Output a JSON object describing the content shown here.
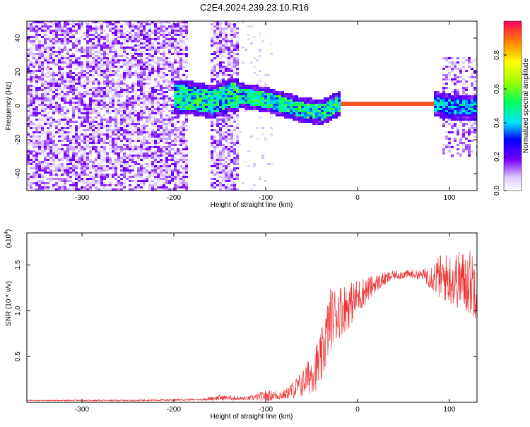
{
  "title": "C2E4.2024.239.23.10.R16",
  "chart_data": [
    {
      "type": "heatmap",
      "title": "C2E4.2024.239.23.10.R16",
      "xlabel": "Height of straight line (km)",
      "ylabel": "Frequency (Hz)",
      "xlim": [
        -360,
        130
      ],
      "ylim": [
        -50,
        50
      ],
      "x_ticks": [
        "-300",
        "-200",
        "-100",
        "0",
        "100"
      ],
      "y_ticks": [
        "-40",
        "-20",
        "0",
        "20",
        "40"
      ],
      "colorbar": {
        "label": "Normalized spectral amplitude",
        "ticks": [
          "0.0",
          "0.2",
          "0.4",
          "0.6",
          "0.8"
        ],
        "range": [
          0,
          1
        ]
      },
      "traces": {
        "noise_region_x": [
          -360,
          -185
        ],
        "noise_band_x": [
          -160,
          -130
        ],
        "signal_start_x": -200,
        "signal_center_hz": [
          [
            -200,
            6
          ],
          [
            -180,
            5
          ],
          [
            -160,
            3
          ],
          [
            -140,
            7
          ],
          [
            -120,
            6
          ],
          [
            -100,
            4
          ],
          [
            -80,
            1
          ],
          [
            -60,
            -2
          ],
          [
            -40,
            -3
          ],
          [
            -20,
            2
          ],
          [
            0,
            2
          ],
          [
            40,
            2
          ],
          [
            80,
            2
          ],
          [
            100,
            0
          ],
          [
            130,
            0
          ]
        ],
        "strong_segment_x": [
          -20,
          80
        ]
      }
    },
    {
      "type": "line",
      "xlabel": "Height of straight line (km)",
      "ylabel": "SNR (10 * v/v)",
      "multiplier_label": "(x10",
      "multiplier_exp": "4",
      "xlim": [
        -360,
        130
      ],
      "ylim": [
        0,
        1.85
      ],
      "x_ticks": [
        "-300",
        "-200",
        "-100",
        "0",
        "100"
      ],
      "y_ticks": [
        "0.5",
        "1.0",
        "1.5"
      ],
      "color": "#ee3333",
      "series": [
        {
          "envelope": [
            [
              -360,
              0.02
            ],
            [
              -250,
              0.02
            ],
            [
              -170,
              0.03
            ],
            [
              -150,
              0.05
            ],
            [
              -120,
              0.04
            ],
            [
              -100,
              0.07
            ],
            [
              -80,
              0.08
            ],
            [
              -60,
              0.2
            ],
            [
              -40,
              0.45
            ],
            [
              -30,
              0.9
            ],
            [
              -20,
              1.0
            ],
            [
              -10,
              1.05
            ],
            [
              0,
              1.15
            ],
            [
              20,
              1.3
            ],
            [
              40,
              1.39
            ],
            [
              60,
              1.4
            ],
            [
              80,
              1.38
            ],
            [
              100,
              1.35
            ],
            [
              130,
              1.3
            ]
          ],
          "noise_amplitude": [
            [
              -360,
              0.005
            ],
            [
              -170,
              0.01
            ],
            [
              -150,
              0.03
            ],
            [
              -120,
              0.02
            ],
            [
              -100,
              0.06
            ],
            [
              -80,
              0.05
            ],
            [
              -60,
              0.15
            ],
            [
              -40,
              0.3
            ],
            [
              -30,
              0.35
            ],
            [
              -20,
              0.3
            ],
            [
              0,
              0.2
            ],
            [
              20,
              0.1
            ],
            [
              40,
              0.05
            ],
            [
              70,
              0.05
            ],
            [
              90,
              0.25
            ],
            [
              130,
              0.4
            ]
          ]
        }
      ]
    }
  ]
}
